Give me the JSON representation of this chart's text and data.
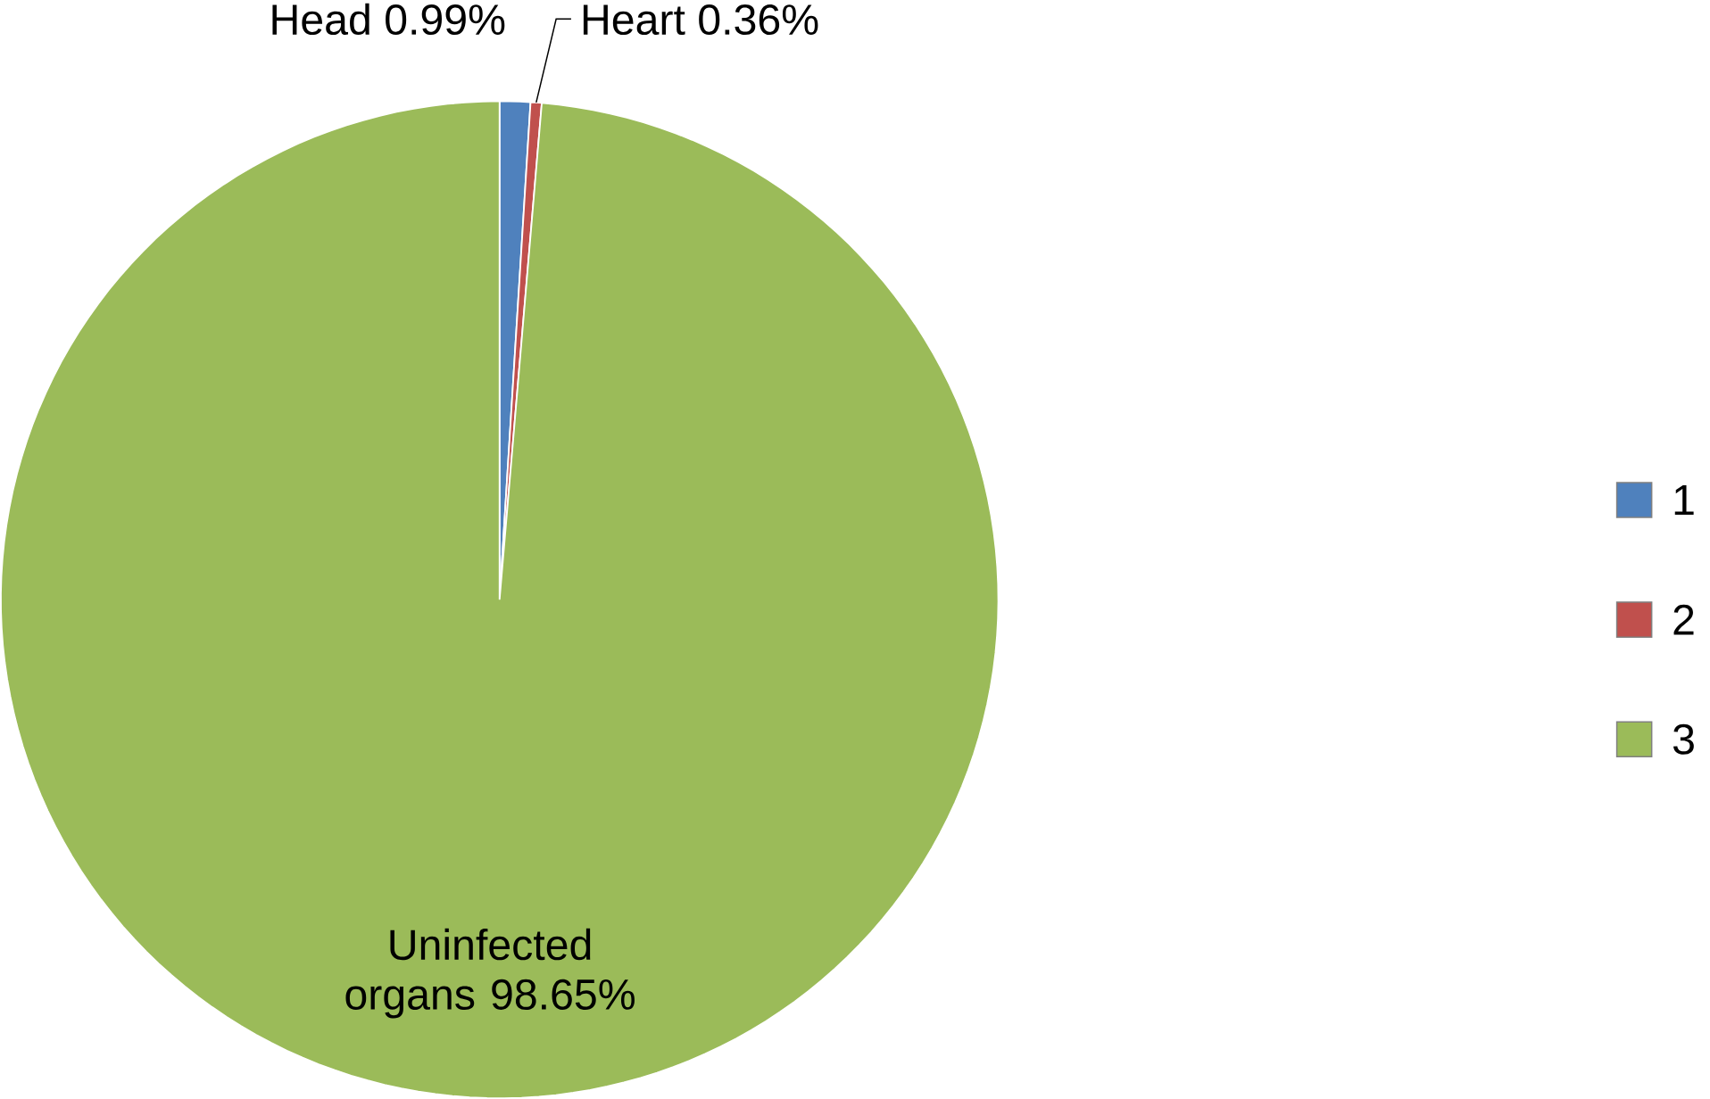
{
  "chart_data": {
    "type": "pie",
    "categories": [
      "1",
      "2",
      "3"
    ],
    "values": [
      0.99,
      0.36,
      98.65
    ],
    "colors": [
      "#4f81bd",
      "#c0504d",
      "#9bbb59"
    ],
    "value_labels": [
      "Head 0.99%",
      "Heart 0.36%",
      "Uninfected organs 98.65%"
    ],
    "legend": "right"
  }
}
